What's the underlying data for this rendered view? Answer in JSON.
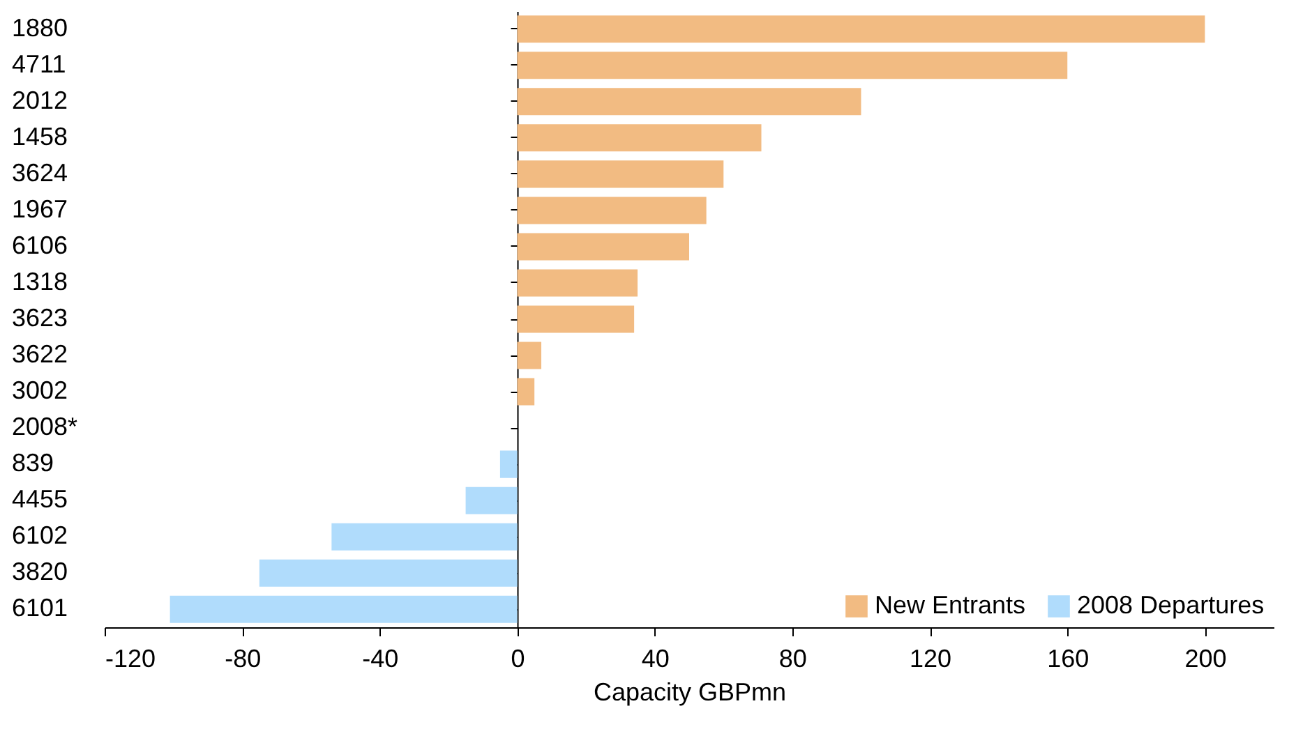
{
  "chart_data": {
    "type": "bar",
    "orientation": "horizontal",
    "xlabel": "Capacity GBPmn",
    "categories": [
      "1880",
      "4711",
      "2012",
      "1458",
      "3624",
      "1967",
      "6106",
      "1318",
      "3623",
      "3622",
      "3002",
      "2008*",
      "839",
      "4455",
      "6102",
      "3820",
      "6101"
    ],
    "series": [
      {
        "name": "New Entrants",
        "color": "#f2bb82",
        "values": [
          200,
          160,
          100,
          71,
          60,
          55,
          50,
          35,
          34,
          7,
          5,
          null,
          null,
          null,
          null,
          null,
          null
        ]
      },
      {
        "name": "2008 Departures",
        "color": "#b0dcfc",
        "values": [
          null,
          null,
          null,
          null,
          null,
          null,
          null,
          null,
          null,
          null,
          null,
          null,
          -5,
          -15,
          -54,
          -75,
          -101
        ]
      }
    ],
    "xlim": [
      -120,
      220
    ],
    "xticks": [
      -120,
      -80,
      -40,
      0,
      40,
      80,
      120,
      160,
      200
    ],
    "legend": "bottom right"
  }
}
